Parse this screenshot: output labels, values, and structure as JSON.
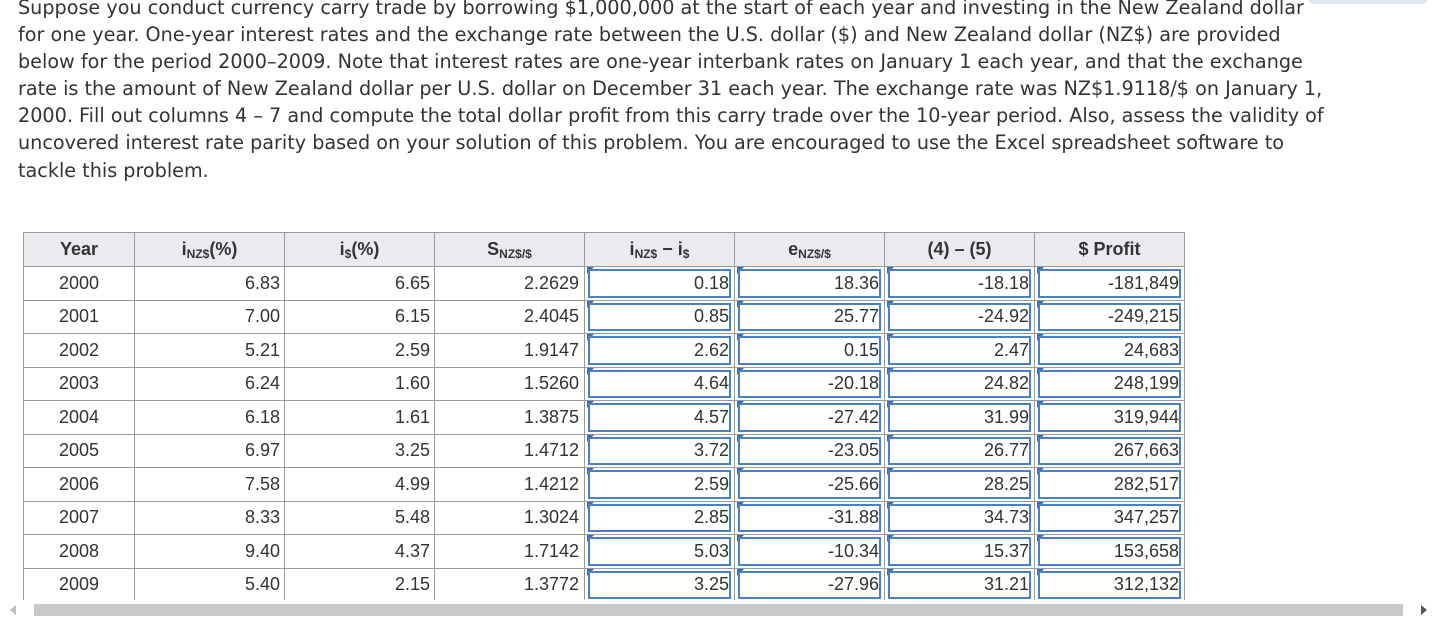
{
  "problem": {
    "lines": [
      "Suppose you conduct currency carry trade by borrowing $1,000,000 at the start of each year and investing in the New Zealand dollar",
      "for one year. One-year interest rates and the exchange rate between the U.S. dollar ($) and New Zealand dollar (NZ$) are provided",
      "below for the period 2000–2009. Note that interest rates are one-year interbank rates on January 1 each year, and that the exchange",
      "rate is the amount of New Zealand dollar per U.S. dollar on December 31 each year. The exchange rate was NZ$1.9118/$ on January 1,",
      "2000. Fill out columns 4 – 7 and compute the total dollar profit from this carry trade over the 10-year period. Also, assess the validity of",
      "uncovered interest rate parity based on your solution of this problem. You are encouraged to use the Excel spreadsheet software to",
      "tackle this problem."
    ]
  },
  "table": {
    "headers": {
      "year": "Year",
      "inz_main": "i",
      "inz_sub": "NZ$",
      "inz_tail": "(%)",
      "ius_main": "i",
      "ius_sub": "$",
      "ius_tail": "(%)",
      "s_main": "S",
      "s_sub": "NZ$/$",
      "diff_main": "i",
      "diff_sub": "NZ$",
      "diff_mid": " − i",
      "diff_sub2": "$",
      "e_main": "e",
      "e_sub": "NZ$/$",
      "c45": "(4) – (5)",
      "profit": "$ Profit"
    },
    "rows": [
      {
        "year": "2000",
        "inz": "6.83",
        "ius": "6.65",
        "s": "2.2629",
        "diff": "0.18",
        "e": "18.36",
        "c45": "-18.18",
        "profit": "-181,849"
      },
      {
        "year": "2001",
        "inz": "7.00",
        "ius": "6.15",
        "s": "2.4045",
        "diff": "0.85",
        "e": "25.77",
        "c45": "-24.92",
        "profit": "-249,215"
      },
      {
        "year": "2002",
        "inz": "5.21",
        "ius": "2.59",
        "s": "1.9147",
        "diff": "2.62",
        "e": "0.15",
        "c45": "2.47",
        "profit": "24,683"
      },
      {
        "year": "2003",
        "inz": "6.24",
        "ius": "1.60",
        "s": "1.5260",
        "diff": "4.64",
        "e": "-20.18",
        "c45": "24.82",
        "profit": "248,199"
      },
      {
        "year": "2004",
        "inz": "6.18",
        "ius": "1.61",
        "s": "1.3875",
        "diff": "4.57",
        "e": "-27.42",
        "c45": "31.99",
        "profit": "319,944"
      },
      {
        "year": "2005",
        "inz": "6.97",
        "ius": "3.25",
        "s": "1.4712",
        "diff": "3.72",
        "e": "-23.05",
        "c45": "26.77",
        "profit": "267,663"
      },
      {
        "year": "2006",
        "inz": "7.58",
        "ius": "4.99",
        "s": "1.4212",
        "diff": "2.59",
        "e": "-25.66",
        "c45": "28.25",
        "profit": "282,517"
      },
      {
        "year": "2007",
        "inz": "8.33",
        "ius": "5.48",
        "s": "1.3024",
        "diff": "2.85",
        "e": "-31.88",
        "c45": "34.73",
        "profit": "347,257"
      },
      {
        "year": "2008",
        "inz": "9.40",
        "ius": "4.37",
        "s": "1.7142",
        "diff": "5.03",
        "e": "-10.34",
        "c45": "15.37",
        "profit": "153,658"
      },
      {
        "year": "2009",
        "inz": "5.40",
        "ius": "2.15",
        "s": "1.3772",
        "diff": "3.25",
        "e": "-27.96",
        "c45": "31.21",
        "profit": "312,132"
      }
    ]
  },
  "colors": {
    "header_bg": "#e9ebef",
    "answer_border": "#4a80c8",
    "answer_flag": "#2e6fc4",
    "scrollbar": "#c9c9c9"
  },
  "icons": {
    "scroll_left": "triangle-left-icon",
    "scroll_right": "triangle-right-icon",
    "answer_flag": "answer-corner-flag-icon"
  }
}
